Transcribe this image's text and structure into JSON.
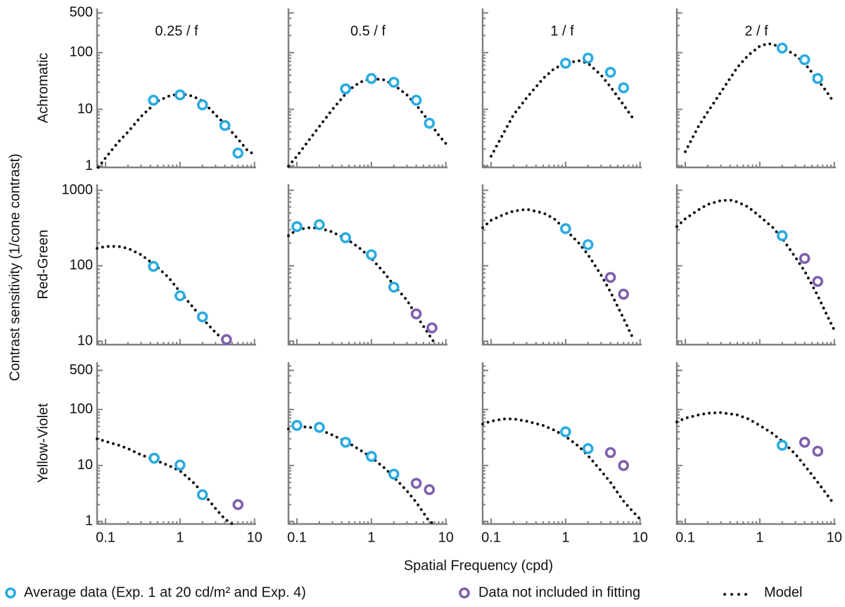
{
  "ylabel": "Contrast sensitivity (1/cone contrast)",
  "xlabel": "Spatial Frequency (cpd)",
  "legend": {
    "data": "Average data (Exp. 1 at 20 cd/m² and Exp. 4)",
    "excluded": "Data not included in fitting",
    "model": "Model"
  },
  "colors": {
    "data": "#29abe2",
    "excluded": "#7e5fae",
    "model": "#111111"
  },
  "chart_data": [
    {
      "type": "scatter",
      "title": "0.25 / f",
      "ylabel": "Achromatic",
      "log_x": true,
      "log_y": true,
      "xlim": [
        0.077,
        10.5
      ],
      "ylim": [
        0.95,
        600
      ],
      "xticks": [
        0.1,
        1,
        10
      ],
      "yticks": [
        1,
        10,
        100,
        500
      ],
      "data": {
        "x": [
          0.44,
          1,
          2,
          4,
          6
        ],
        "values": [
          14.5,
          18,
          12,
          5.2,
          1.7
        ]
      },
      "excluded": {
        "x": [],
        "values": []
      },
      "model": {
        "x": [
          0.08,
          0.1,
          0.15,
          0.2,
          0.3,
          0.5,
          0.7,
          1,
          1.5,
          2,
          3,
          4,
          6,
          8,
          10
        ],
        "values": [
          0.95,
          1.4,
          2.7,
          4,
          7.5,
          14,
          17,
          19,
          17,
          14,
          8,
          5.5,
          3,
          1.9,
          1.6
        ]
      }
    },
    {
      "type": "scatter",
      "title": "0.5 / f",
      "log_x": true,
      "log_y": true,
      "xlim": [
        0.077,
        10.5
      ],
      "ylim": [
        0.95,
        600
      ],
      "xticks": [
        0.1,
        1,
        10
      ],
      "yticks": [
        1,
        10,
        100,
        500
      ],
      "data": {
        "x": [
          0.45,
          1,
          2,
          4,
          6
        ],
        "values": [
          23,
          35,
          30,
          14.5,
          5.7
        ]
      },
      "excluded": {
        "x": [],
        "values": []
      },
      "model": {
        "x": [
          0.077,
          0.1,
          0.2,
          0.3,
          0.5,
          0.7,
          1,
          1.5,
          2,
          3,
          4,
          6,
          8,
          10
        ],
        "values": [
          1,
          1.5,
          5,
          10,
          22,
          30,
          35,
          33,
          27,
          18,
          12,
          6,
          3.5,
          2.5
        ]
      }
    },
    {
      "type": "scatter",
      "title": "1 / f",
      "log_x": true,
      "log_y": true,
      "xlim": [
        0.077,
        10.5
      ],
      "ylim": [
        0.95,
        600
      ],
      "xticks": [
        0.1,
        1,
        10
      ],
      "yticks": [
        1,
        10,
        100,
        500
      ],
      "data": {
        "x": [
          1,
          2,
          4,
          6
        ],
        "values": [
          65,
          80,
          45,
          24
        ]
      },
      "excluded": {
        "x": [],
        "values": []
      },
      "model": {
        "x": [
          0.1,
          0.15,
          0.2,
          0.3,
          0.5,
          0.7,
          1,
          1.5,
          2,
          3,
          4,
          6,
          8
        ],
        "values": [
          1.5,
          4,
          8,
          16,
          35,
          52,
          65,
          72,
          65,
          40,
          25,
          12,
          7
        ]
      }
    },
    {
      "type": "scatter",
      "title": "2 / f",
      "log_x": true,
      "log_y": true,
      "xlim": [
        0.077,
        10.5
      ],
      "ylim": [
        0.95,
        600
      ],
      "xticks": [
        0.1,
        1,
        10
      ],
      "yticks": [
        1,
        10,
        100,
        500
      ],
      "data": {
        "x": [
          2,
          4,
          6
        ],
        "values": [
          120,
          75,
          35
        ]
      },
      "excluded": {
        "x": [],
        "values": []
      },
      "model": {
        "x": [
          0.1,
          0.15,
          0.2,
          0.3,
          0.5,
          0.7,
          1,
          1.3,
          2,
          3,
          4,
          6,
          8,
          10
        ],
        "values": [
          1.8,
          5,
          9,
          20,
          55,
          90,
          130,
          145,
          125,
          90,
          65,
          33,
          20,
          13
        ]
      }
    },
    {
      "type": "scatter",
      "ylabel": "Red-Green",
      "log_x": true,
      "log_y": true,
      "xlim": [
        0.077,
        10.5
      ],
      "ylim": [
        9,
        1200
      ],
      "xticks": [
        0.1,
        1,
        10
      ],
      "yticks": [
        10,
        100,
        1000
      ],
      "data": {
        "x": [
          0.44,
          1,
          2
        ],
        "values": [
          98,
          40,
          21
        ]
      },
      "excluded": {
        "x": [
          4.2
        ],
        "values": [
          10.5
        ]
      },
      "model": {
        "x": [
          0.077,
          0.1,
          0.15,
          0.2,
          0.3,
          0.5,
          0.7,
          1,
          1.5,
          2,
          3,
          4
        ],
        "values": [
          170,
          180,
          180,
          170,
          140,
          95,
          70,
          45,
          28,
          20,
          13,
          10
        ]
      }
    },
    {
      "type": "scatter",
      "log_x": true,
      "log_y": true,
      "xlim": [
        0.077,
        10.5
      ],
      "ylim": [
        9,
        1200
      ],
      "xticks": [
        0.1,
        1,
        10
      ],
      "yticks": [
        10,
        100,
        1000
      ],
      "data": {
        "x": [
          0.1,
          0.2,
          0.45,
          1,
          2
        ],
        "values": [
          330,
          350,
          235,
          140,
          52
        ]
      },
      "excluded": {
        "x": [
          4,
          6.5
        ],
        "values": [
          23,
          15
        ]
      },
      "model": {
        "x": [
          0.077,
          0.1,
          0.15,
          0.2,
          0.3,
          0.5,
          0.7,
          1,
          1.5,
          2,
          3,
          4,
          6,
          7
        ],
        "values": [
          250,
          300,
          320,
          315,
          280,
          215,
          170,
          125,
          80,
          55,
          35,
          22,
          12,
          9.5
        ]
      }
    },
    {
      "type": "scatter",
      "log_x": true,
      "log_y": true,
      "xlim": [
        0.077,
        10.5
      ],
      "ylim": [
        9,
        1200
      ],
      "xticks": [
        0.1,
        1,
        10
      ],
      "yticks": [
        10,
        100,
        1000
      ],
      "data": {
        "x": [
          1,
          2
        ],
        "values": [
          310,
          190
        ]
      },
      "excluded": {
        "x": [
          4,
          6
        ],
        "values": [
          70,
          42
        ]
      },
      "model": {
        "x": [
          0.077,
          0.1,
          0.15,
          0.2,
          0.3,
          0.5,
          0.7,
          1,
          1.5,
          2,
          3,
          4,
          6,
          8
        ],
        "values": [
          320,
          400,
          480,
          530,
          560,
          500,
          420,
          300,
          200,
          140,
          75,
          45,
          20,
          11
        ]
      }
    },
    {
      "type": "scatter",
      "log_x": true,
      "log_y": true,
      "xlim": [
        0.077,
        10.5
      ],
      "ylim": [
        9,
        1200
      ],
      "xticks": [
        0.1,
        1,
        10
      ],
      "yticks": [
        10,
        100,
        1000
      ],
      "data": {
        "x": [
          2
        ],
        "values": [
          250
        ]
      },
      "excluded": {
        "x": [
          4,
          6
        ],
        "values": [
          125,
          62
        ]
      },
      "model": {
        "x": [
          0.077,
          0.1,
          0.15,
          0.2,
          0.3,
          0.4,
          0.5,
          0.7,
          1,
          1.5,
          2,
          3,
          4,
          6,
          8,
          10
        ],
        "values": [
          330,
          420,
          550,
          650,
          730,
          740,
          700,
          600,
          450,
          320,
          230,
          130,
          85,
          40,
          22,
          14
        ]
      }
    },
    {
      "type": "scatter",
      "ylabel": "Yellow-Violet",
      "log_x": true,
      "log_y": true,
      "xlim": [
        0.077,
        10.5
      ],
      "ylim": [
        0.9,
        700
      ],
      "xticks": [
        0.1,
        1,
        10
      ],
      "yticks": [
        1,
        10,
        100,
        500
      ],
      "data": {
        "x": [
          0.45,
          1,
          2
        ],
        "values": [
          13.5,
          10.2,
          3
        ]
      },
      "excluded": {
        "x": [
          6
        ],
        "values": [
          2
        ]
      },
      "model": {
        "x": [
          0.077,
          0.1,
          0.15,
          0.2,
          0.3,
          0.5,
          0.7,
          1,
          1.5,
          2,
          3,
          4,
          5
        ],
        "values": [
          30,
          27,
          23,
          20,
          15.5,
          12,
          10,
          8,
          5,
          3.3,
          1.7,
          1.1,
          0.9
        ]
      }
    },
    {
      "type": "scatter",
      "log_x": true,
      "log_y": true,
      "xlim": [
        0.077,
        10.5
      ],
      "ylim": [
        0.9,
        700
      ],
      "xticks": [
        0.1,
        1,
        10
      ],
      "yticks": [
        1,
        10,
        100,
        500
      ],
      "data": {
        "x": [
          0.1,
          0.2,
          0.45,
          1,
          2
        ],
        "values": [
          52,
          48,
          26,
          14.5,
          7
        ]
      },
      "excluded": {
        "x": [
          4,
          6
        ],
        "values": [
          4.8,
          3.7
        ]
      },
      "model": {
        "x": [
          0.077,
          0.1,
          0.15,
          0.2,
          0.3,
          0.5,
          0.7,
          1,
          1.5,
          2,
          3,
          4,
          6,
          7
        ],
        "values": [
          45,
          50,
          48,
          44,
          35,
          25,
          19,
          14,
          9,
          6.2,
          3.5,
          2.2,
          1,
          0.9
        ]
      }
    },
    {
      "type": "scatter",
      "log_x": true,
      "log_y": true,
      "xlim": [
        0.077,
        10.5
      ],
      "ylim": [
        0.9,
        700
      ],
      "xticks": [
        0.1,
        1,
        10
      ],
      "yticks": [
        1,
        10,
        100,
        500
      ],
      "data": {
        "x": [
          1,
          2
        ],
        "values": [
          40,
          20
        ]
      },
      "excluded": {
        "x": [
          4,
          6
        ],
        "values": [
          17,
          10
        ]
      },
      "model": {
        "x": [
          0.077,
          0.1,
          0.15,
          0.2,
          0.3,
          0.5,
          0.7,
          1,
          1.5,
          2,
          3,
          4,
          6,
          8,
          10
        ],
        "values": [
          55,
          62,
          68,
          68,
          62,
          52,
          43,
          33,
          22,
          15,
          8,
          5,
          2.3,
          1.5,
          1.1
        ]
      }
    },
    {
      "type": "scatter",
      "log_x": true,
      "log_y": true,
      "xlim": [
        0.077,
        10.5
      ],
      "ylim": [
        0.9,
        700
      ],
      "xticks": [
        0.1,
        1,
        10
      ],
      "yticks": [
        1,
        10,
        100,
        500
      ],
      "data": {
        "x": [
          2
        ],
        "values": [
          23
        ]
      },
      "excluded": {
        "x": [
          4,
          6
        ],
        "values": [
          26,
          18
        ]
      },
      "model": {
        "x": [
          0.077,
          0.1,
          0.15,
          0.2,
          0.3,
          0.5,
          0.7,
          1,
          1.5,
          2,
          3,
          4,
          6,
          8,
          10
        ],
        "values": [
          60,
          70,
          80,
          86,
          88,
          80,
          68,
          52,
          37,
          27,
          16,
          10,
          5,
          3,
          2
        ]
      }
    }
  ]
}
